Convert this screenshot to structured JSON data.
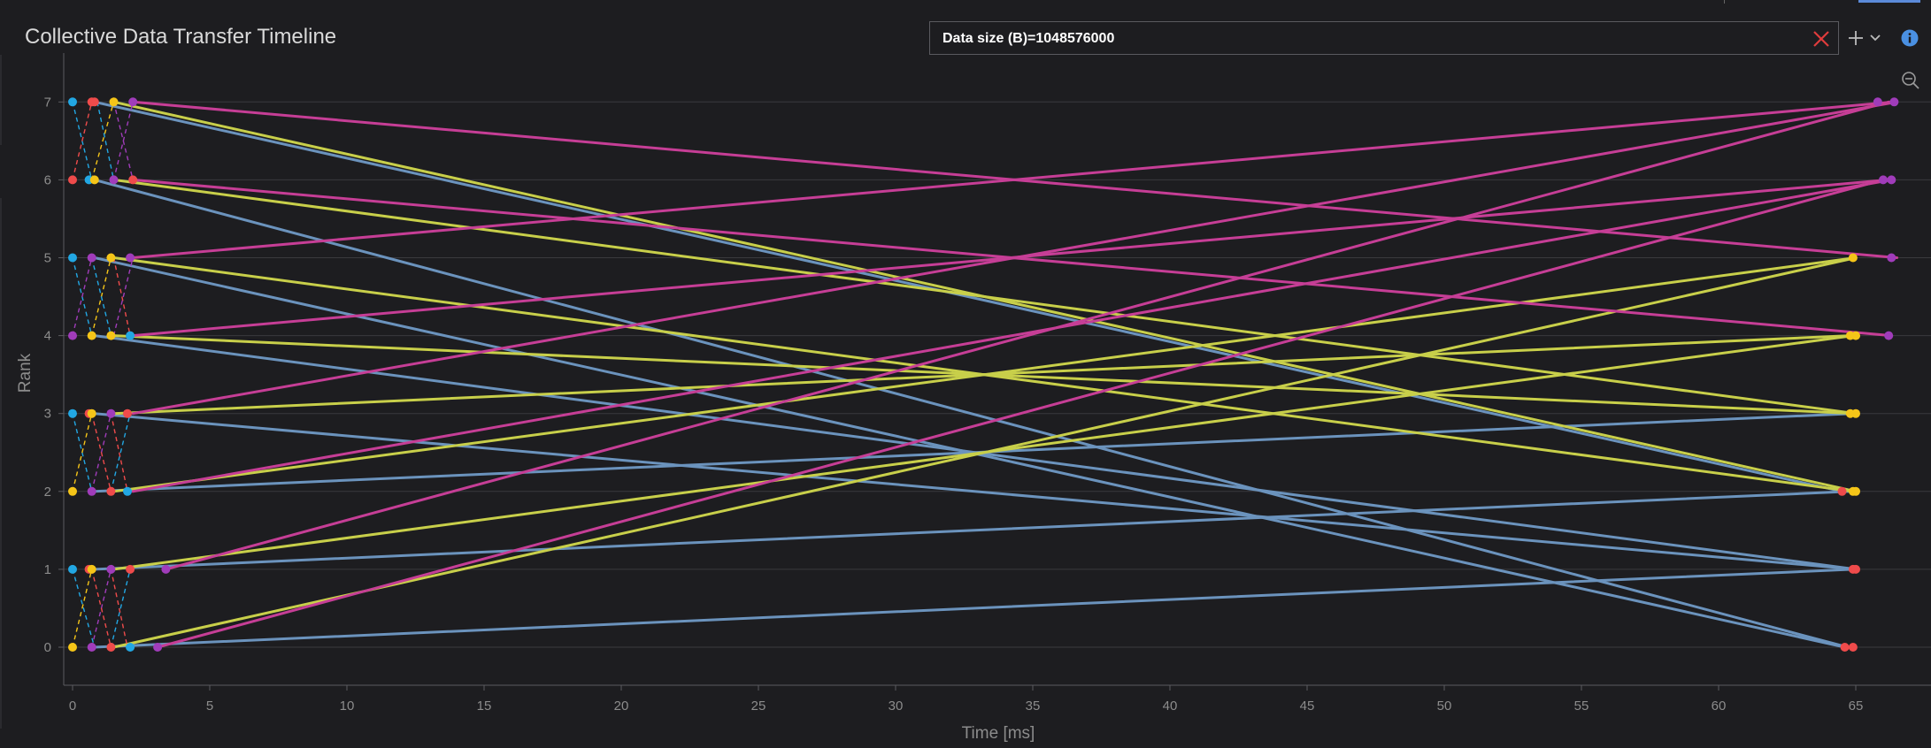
{
  "panel": {
    "title": "Collective Data Transfer Timeline"
  },
  "filter": {
    "text": "Data size (B)=1048576000"
  },
  "colors": {
    "background": "#1d1d20",
    "grid": "#3a3a3e",
    "axis": "#5a5a5f",
    "tick_text": "#8c8c8c",
    "blue": "#6b93bd",
    "yellow": "#c8cf4a",
    "magenta": "#c63e96",
    "dot_cyan": "#22a7e3",
    "dot_red": "#ef4b4b",
    "dot_yellow": "#f5c518",
    "dot_purple": "#a03cba",
    "clear_red": "#e03c3c",
    "info_blue": "#4a90e2"
  },
  "chart_data": {
    "type": "line",
    "title": "Collective Data Transfer Timeline",
    "xlabel": "Time [ms]",
    "ylabel": "Rank",
    "xlim": [
      -0.3,
      67
    ],
    "ylim": [
      -0.5,
      7.4
    ],
    "x_ticks": [
      0,
      5,
      10,
      15,
      20,
      25,
      30,
      35,
      40,
      45,
      50,
      55,
      60,
      65
    ],
    "y_ticks": [
      0,
      1,
      2,
      3,
      4,
      5,
      6,
      7
    ],
    "series": [
      {
        "name": "blue",
        "color": "blue",
        "segments": [
          {
            "x0": 0.8,
            "y0": 0,
            "x1": 64.9,
            "y1": 1
          },
          {
            "x0": 0.8,
            "y0": 1,
            "x1": 64.8,
            "y1": 2
          },
          {
            "x0": 0.8,
            "y0": 2,
            "x1": 64.9,
            "y1": 3
          },
          {
            "x0": 0.8,
            "y0": 3,
            "x1": 65.0,
            "y1": 1
          },
          {
            "x0": 0.8,
            "y0": 4,
            "x1": 65.0,
            "y1": 1
          },
          {
            "x0": 0.8,
            "y0": 5,
            "x1": 64.6,
            "y1": 0
          },
          {
            "x0": 0.8,
            "y0": 6,
            "x1": 64.7,
            "y1": 0
          },
          {
            "x0": 0.8,
            "y0": 7,
            "x1": 64.5,
            "y1": 2
          }
        ]
      },
      {
        "name": "yellow",
        "color": "yellow",
        "segments": [
          {
            "x0": 1.5,
            "y0": 0,
            "x1": 65.0,
            "y1": 5
          },
          {
            "x0": 1.5,
            "y0": 1,
            "x1": 64.9,
            "y1": 4
          },
          {
            "x0": 1.5,
            "y0": 2,
            "x1": 65.0,
            "y1": 5
          },
          {
            "x0": 1.5,
            "y0": 3,
            "x1": 64.8,
            "y1": 4
          },
          {
            "x0": 1.5,
            "y0": 4,
            "x1": 65.0,
            "y1": 3
          },
          {
            "x0": 1.5,
            "y0": 5,
            "x1": 64.9,
            "y1": 2
          },
          {
            "x0": 1.5,
            "y0": 6,
            "x1": 65.0,
            "y1": 3
          },
          {
            "x0": 1.5,
            "y0": 7,
            "x1": 65.0,
            "y1": 2
          }
        ]
      },
      {
        "name": "magenta",
        "color": "magenta",
        "segments": [
          {
            "x0": 3.1,
            "y0": 0,
            "x1": 66.0,
            "y1": 6
          },
          {
            "x0": 3.4,
            "y0": 1,
            "x1": 66.2,
            "y1": 7
          },
          {
            "x0": 2.2,
            "y0": 2,
            "x1": 66.3,
            "y1": 6
          },
          {
            "x0": 2.2,
            "y0": 3,
            "x1": 66.5,
            "y1": 7
          },
          {
            "x0": 2.2,
            "y0": 4,
            "x1": 66.2,
            "y1": 6
          },
          {
            "x0": 2.2,
            "y0": 5,
            "x1": 66.4,
            "y1": 7
          },
          {
            "x0": 2.2,
            "y0": 6,
            "x1": 66.3,
            "y1": 4
          },
          {
            "x0": 2.2,
            "y0": 7,
            "x1": 66.5,
            "y1": 5
          }
        ]
      }
    ],
    "dashed_links": [
      {
        "color": "dot_cyan",
        "x0": 0.0,
        "y0": 1,
        "x1": 0.8,
        "y1": 0
      },
      {
        "color": "dot_cyan",
        "x0": 0.0,
        "y0": 3,
        "x1": 0.7,
        "y1": 2
      },
      {
        "color": "dot_cyan",
        "x0": 0.0,
        "y0": 5,
        "x1": 0.7,
        "y1": 4
      },
      {
        "color": "dot_cyan",
        "x0": 0.0,
        "y0": 7,
        "x1": 0.7,
        "y1": 6
      },
      {
        "color": "dot_yellow",
        "x0": 0.0,
        "y0": 0,
        "x1": 0.7,
        "y1": 1
      },
      {
        "color": "dot_yellow",
        "x0": 0.0,
        "y0": 2,
        "x1": 0.7,
        "y1": 3
      },
      {
        "color": "dot_red",
        "x0": 0.0,
        "y0": 6,
        "x1": 0.7,
        "y1": 7
      },
      {
        "color": "dot_purple",
        "x0": 0.0,
        "y0": 4,
        "x1": 0.7,
        "y1": 5
      },
      {
        "color": "dot_purple",
        "x0": 0.7,
        "y0": 0,
        "x1": 1.4,
        "y1": 1
      },
      {
        "color": "dot_purple",
        "x0": 0.7,
        "y0": 2,
        "x1": 1.4,
        "y1": 3
      },
      {
        "color": "dot_red",
        "x0": 0.7,
        "y0": 1,
        "x1": 1.4,
        "y1": 0
      },
      {
        "color": "dot_red",
        "x0": 0.7,
        "y0": 3,
        "x1": 1.4,
        "y1": 2
      },
      {
        "color": "dot_yellow",
        "x0": 0.7,
        "y0": 4,
        "x1": 1.4,
        "y1": 5
      },
      {
        "color": "dot_yellow",
        "x0": 0.7,
        "y0": 6,
        "x1": 1.5,
        "y1": 7
      },
      {
        "color": "dot_cyan",
        "x0": 0.7,
        "y0": 5,
        "x1": 1.4,
        "y1": 4
      },
      {
        "color": "dot_cyan",
        "x0": 0.9,
        "y0": 7,
        "x1": 1.5,
        "y1": 6
      },
      {
        "color": "dot_cyan",
        "x0": 1.4,
        "y0": 0,
        "x1": 2.1,
        "y1": 1
      },
      {
        "color": "dot_cyan",
        "x0": 1.4,
        "y0": 2,
        "x1": 2.1,
        "y1": 3
      },
      {
        "color": "dot_red",
        "x0": 1.4,
        "y0": 1,
        "x1": 2.0,
        "y1": 0
      },
      {
        "color": "dot_red",
        "x0": 1.4,
        "y0": 3,
        "x1": 2.0,
        "y1": 2
      },
      {
        "color": "dot_red",
        "x0": 1.5,
        "y0": 5,
        "x1": 2.1,
        "y1": 4
      },
      {
        "color": "dot_purple",
        "x0": 1.5,
        "y0": 7,
        "x1": 2.2,
        "y1": 6
      },
      {
        "color": "dot_purple",
        "x0": 1.5,
        "y0": 4,
        "x1": 2.2,
        "y1": 5
      },
      {
        "color": "dot_purple",
        "x0": 1.5,
        "y0": 6,
        "x1": 2.2,
        "y1": 7
      }
    ],
    "start_dots": [
      {
        "x": 0.0,
        "y": 0,
        "color": "dot_yellow"
      },
      {
        "x": 0.7,
        "y": 0,
        "color": "dot_purple"
      },
      {
        "x": 1.4,
        "y": 0,
        "color": "dot_red"
      },
      {
        "x": 2.1,
        "y": 0,
        "color": "dot_cyan"
      },
      {
        "x": 3.1,
        "y": 0,
        "color": "dot_purple"
      },
      {
        "x": 0.0,
        "y": 1,
        "color": "dot_cyan"
      },
      {
        "x": 0.6,
        "y": 1,
        "color": "dot_red"
      },
      {
        "x": 0.7,
        "y": 1,
        "color": "dot_yellow"
      },
      {
        "x": 1.4,
        "y": 1,
        "color": "dot_purple"
      },
      {
        "x": 2.1,
        "y": 1,
        "color": "dot_red"
      },
      {
        "x": 3.4,
        "y": 1,
        "color": "dot_purple"
      },
      {
        "x": 0.0,
        "y": 2,
        "color": "dot_yellow"
      },
      {
        "x": 0.7,
        "y": 2,
        "color": "dot_purple"
      },
      {
        "x": 1.4,
        "y": 2,
        "color": "dot_red"
      },
      {
        "x": 2.0,
        "y": 2,
        "color": "dot_cyan"
      },
      {
        "x": 0.0,
        "y": 3,
        "color": "dot_cyan"
      },
      {
        "x": 0.6,
        "y": 3,
        "color": "dot_red"
      },
      {
        "x": 0.7,
        "y": 3,
        "color": "dot_yellow"
      },
      {
        "x": 1.4,
        "y": 3,
        "color": "dot_purple"
      },
      {
        "x": 2.0,
        "y": 3,
        "color": "dot_red"
      },
      {
        "x": 0.0,
        "y": 4,
        "color": "dot_purple"
      },
      {
        "x": 0.7,
        "y": 4,
        "color": "dot_yellow"
      },
      {
        "x": 1.4,
        "y": 4,
        "color": "dot_yellow"
      },
      {
        "x": 2.1,
        "y": 4,
        "color": "dot_cyan"
      },
      {
        "x": 0.0,
        "y": 5,
        "color": "dot_cyan"
      },
      {
        "x": 0.7,
        "y": 5,
        "color": "dot_purple"
      },
      {
        "x": 1.4,
        "y": 5,
        "color": "dot_yellow"
      },
      {
        "x": 2.1,
        "y": 5,
        "color": "dot_purple"
      },
      {
        "x": 0.0,
        "y": 6,
        "color": "dot_red"
      },
      {
        "x": 0.6,
        "y": 6,
        "color": "dot_cyan"
      },
      {
        "x": 0.8,
        "y": 6,
        "color": "dot_yellow"
      },
      {
        "x": 1.5,
        "y": 6,
        "color": "dot_purple"
      },
      {
        "x": 2.2,
        "y": 6,
        "color": "dot_red"
      },
      {
        "x": 0.0,
        "y": 7,
        "color": "dot_cyan"
      },
      {
        "x": 0.7,
        "y": 7,
        "color": "dot_red"
      },
      {
        "x": 0.8,
        "y": 7,
        "color": "dot_red"
      },
      {
        "x": 1.5,
        "y": 7,
        "color": "dot_yellow"
      },
      {
        "x": 2.2,
        "y": 7,
        "color": "dot_purple"
      }
    ],
    "end_dots": [
      {
        "x": 64.6,
        "y": 0,
        "color": "dot_red"
      },
      {
        "x": 64.9,
        "y": 0,
        "color": "dot_red"
      },
      {
        "x": 64.9,
        "y": 1,
        "color": "dot_red"
      },
      {
        "x": 65.0,
        "y": 1,
        "color": "dot_red"
      },
      {
        "x": 64.5,
        "y": 2,
        "color": "dot_red"
      },
      {
        "x": 64.9,
        "y": 2,
        "color": "dot_yellow"
      },
      {
        "x": 65.0,
        "y": 2,
        "color": "dot_yellow"
      },
      {
        "x": 64.8,
        "y": 3,
        "color": "dot_yellow"
      },
      {
        "x": 65.0,
        "y": 3,
        "color": "dot_yellow"
      },
      {
        "x": 64.8,
        "y": 4,
        "color": "dot_yellow"
      },
      {
        "x": 65.0,
        "y": 4,
        "color": "dot_yellow"
      },
      {
        "x": 66.2,
        "y": 4,
        "color": "dot_purple"
      },
      {
        "x": 64.9,
        "y": 5,
        "color": "dot_yellow"
      },
      {
        "x": 66.3,
        "y": 5,
        "color": "dot_purple"
      },
      {
        "x": 66.0,
        "y": 6,
        "color": "dot_purple"
      },
      {
        "x": 66.3,
        "y": 6,
        "color": "dot_purple"
      },
      {
        "x": 65.8,
        "y": 7,
        "color": "dot_purple"
      },
      {
        "x": 66.4,
        "y": 7,
        "color": "dot_purple"
      }
    ]
  }
}
